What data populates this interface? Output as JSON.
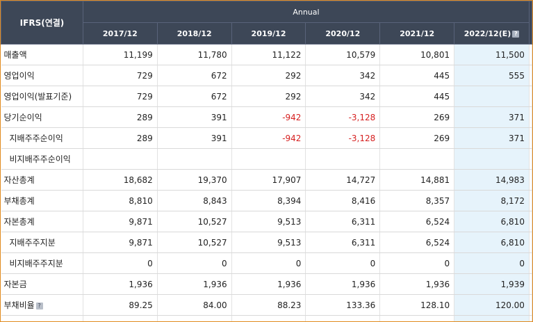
{
  "header": {
    "corner_label": "IFRS(연결)",
    "group_label": "Annual",
    "years": [
      {
        "label": "2017/12",
        "estimate": false
      },
      {
        "label": "2018/12",
        "estimate": false
      },
      {
        "label": "2019/12",
        "estimate": false
      },
      {
        "label": "2020/12",
        "estimate": false
      },
      {
        "label": "2021/12",
        "estimate": false
      },
      {
        "label": "2022/12(E)",
        "estimate": true
      }
    ],
    "help_glyph": "?"
  },
  "rows": [
    {
      "label": "매출액",
      "indent": false,
      "help": false,
      "values": [
        "11,199",
        "11,780",
        "11,122",
        "10,579",
        "10,801",
        "11,500"
      ]
    },
    {
      "label": "영업이익",
      "indent": false,
      "help": false,
      "values": [
        "729",
        "672",
        "292",
        "342",
        "445",
        "555"
      ]
    },
    {
      "label": "영업이익(발표기준)",
      "indent": false,
      "help": false,
      "values": [
        "729",
        "672",
        "292",
        "342",
        "445",
        ""
      ]
    },
    {
      "label": "당기순이익",
      "indent": false,
      "help": false,
      "values": [
        "289",
        "391",
        "-942",
        "-3,128",
        "269",
        "371"
      ]
    },
    {
      "label": "지배주주순이익",
      "indent": true,
      "help": false,
      "values": [
        "289",
        "391",
        "-942",
        "-3,128",
        "269",
        "371"
      ]
    },
    {
      "label": "비지배주주순이익",
      "indent": true,
      "help": false,
      "values": [
        "",
        "",
        "",
        "",
        "",
        ""
      ]
    },
    {
      "label": "자산총계",
      "indent": false,
      "help": false,
      "values": [
        "18,682",
        "19,370",
        "17,907",
        "14,727",
        "14,881",
        "14,983"
      ]
    },
    {
      "label": "부채총계",
      "indent": false,
      "help": false,
      "values": [
        "8,810",
        "8,843",
        "8,394",
        "8,416",
        "8,357",
        "8,172"
      ]
    },
    {
      "label": "자본총계",
      "indent": false,
      "help": false,
      "values": [
        "9,871",
        "10,527",
        "9,513",
        "6,311",
        "6,524",
        "6,810"
      ]
    },
    {
      "label": "지배주주지분",
      "indent": true,
      "help": false,
      "values": [
        "9,871",
        "10,527",
        "9,513",
        "6,311",
        "6,524",
        "6,810"
      ]
    },
    {
      "label": "비지배주주지분",
      "indent": true,
      "help": false,
      "values": [
        "0",
        "0",
        "0",
        "0",
        "0",
        "0"
      ]
    },
    {
      "label": "자본금",
      "indent": false,
      "help": false,
      "values": [
        "1,936",
        "1,936",
        "1,936",
        "1,936",
        "1,936",
        "1,939"
      ]
    },
    {
      "label": "부채비율",
      "indent": false,
      "help": true,
      "values": [
        "89.25",
        "84.00",
        "88.23",
        "133.36",
        "128.10",
        "120.00"
      ]
    },
    {
      "label": "",
      "indent": false,
      "help": false,
      "values": [
        "",
        "",
        "",
        "",
        "",
        ""
      ]
    }
  ],
  "colors": {
    "header_bg": "#3d4757",
    "frame_border": "#e08a1e",
    "estimate_bg": "#e6f3fb",
    "negative_text": "#d62020"
  }
}
